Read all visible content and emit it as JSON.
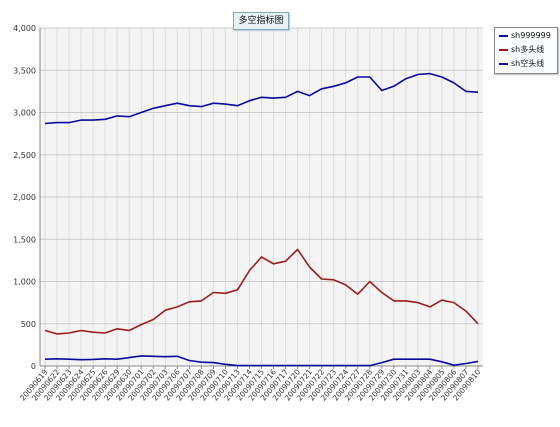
{
  "chart_data": {
    "type": "line",
    "title": "多空指标图",
    "ylim": [
      0,
      4000
    ],
    "y_ticks": [
      "0",
      "500",
      "1,000",
      "1,500",
      "2,000",
      "2,500",
      "3,000",
      "3,500",
      "4,000"
    ],
    "y_tick_values": [
      0,
      500,
      1000,
      1500,
      2000,
      2500,
      3000,
      3500,
      4000
    ],
    "grid": true,
    "legend_position": "top-right",
    "categories": [
      "20090619",
      "20090622",
      "20090623",
      "20090624",
      "20090625",
      "20090626",
      "20090629",
      "20090630",
      "20090701",
      "20090702",
      "20090703",
      "20090706",
      "20090707",
      "20090708",
      "20090709",
      "20090710",
      "20090713",
      "20090714",
      "20090715",
      "20090716",
      "20090717",
      "20090720",
      "20090721",
      "20090722",
      "20090723",
      "20090724",
      "20090727",
      "20090728",
      "20090729",
      "20090730",
      "20090731",
      "20090803",
      "20090804",
      "20090805",
      "20090806",
      "20090807",
      "20090810"
    ],
    "series": [
      {
        "name": "sh999999",
        "color": "#0a0aa0",
        "values": [
          2870,
          2880,
          2880,
          2910,
          2910,
          2920,
          2960,
          2950,
          3000,
          3050,
          3080,
          3110,
          3080,
          3070,
          3110,
          3100,
          3080,
          3140,
          3180,
          3170,
          3180,
          3250,
          3200,
          3280,
          3310,
          3350,
          3420,
          3420,
          3260,
          3310,
          3400,
          3450,
          3460,
          3420,
          3350,
          3250,
          3240
        ]
      },
      {
        "name": "sh多头线",
        "color": "#9c1c1c",
        "values": [
          420,
          380,
          390,
          420,
          400,
          390,
          440,
          420,
          490,
          550,
          660,
          700,
          760,
          770,
          870,
          860,
          900,
          1130,
          1290,
          1210,
          1240,
          1380,
          1170,
          1030,
          1020,
          960,
          850,
          1000,
          870,
          770,
          770,
          750,
          700,
          780,
          750,
          650,
          500
        ]
      },
      {
        "name": "sh空头线",
        "color": "#0a0aa0",
        "values": [
          80,
          85,
          80,
          75,
          78,
          85,
          80,
          100,
          120,
          115,
          110,
          115,
          65,
          45,
          40,
          20,
          5,
          5,
          5,
          5,
          5,
          5,
          5,
          5,
          5,
          5,
          5,
          5,
          40,
          80,
          80,
          80,
          80,
          50,
          10,
          30,
          55
        ]
      }
    ]
  }
}
